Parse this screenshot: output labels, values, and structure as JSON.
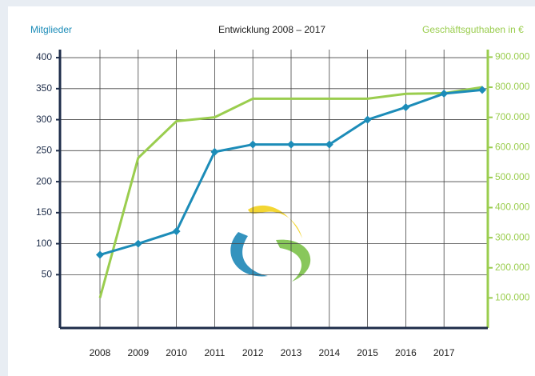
{
  "chart_data": {
    "type": "line",
    "title": "Entwicklung 2008 – 2017",
    "y_label": "Mitglieder",
    "y2_label": "Geschäftsguthaben in €",
    "categories": [
      "2008",
      "2009",
      "2010",
      "2011",
      "2012",
      "2013",
      "2014",
      "2015",
      "2016",
      "2017",
      null
    ],
    "series": [
      {
        "name": "Mitglieder",
        "color": "#1c8cb8",
        "markers": true,
        "values": [
          82,
          100,
          120,
          248,
          260,
          260,
          260,
          300,
          320,
          342,
          348
        ]
      },
      {
        "name": "Geschäftsguthaben",
        "color": "#9acd4e",
        "axis": "y2",
        "markers": false,
        "values": [
          100000,
          565000,
          687000,
          700000,
          762000,
          762000,
          762000,
          762000,
          778000,
          780000,
          800000
        ]
      }
    ],
    "ylim": [
      -36,
      413
    ],
    "yticks": [
      50,
      100,
      150,
      200,
      250,
      300,
      350,
      400
    ],
    "y2lim": [
      0,
      925000
    ],
    "y2ticks": [
      {
        "value": 100000,
        "label": "100.000"
      },
      {
        "value": 200000,
        "label": "200.000"
      },
      {
        "value": 300000,
        "label": "300.000"
      },
      {
        "value": 400000,
        "label": "400.000"
      },
      {
        "value": 500000,
        "label": "500.000"
      },
      {
        "value": 600000,
        "label": "600.000"
      },
      {
        "value": 700000,
        "label": "700.000"
      },
      {
        "value": 800000,
        "label": "800.000"
      },
      {
        "value": 900000,
        "label": "900.000"
      }
    ],
    "grid": true
  }
}
